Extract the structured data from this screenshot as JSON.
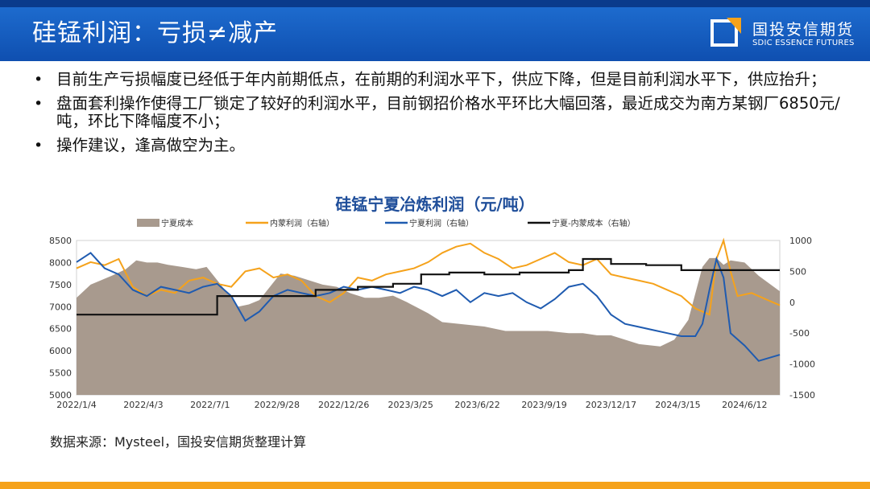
{
  "header": {
    "title": "硅锰利润：亏损≠减产",
    "logo_cn": "国投安信期货",
    "logo_en": "SDIC ESSENCE FUTURES"
  },
  "bullets": [
    "目前生产亏损幅度已经低于年内前期低点，在前期的利润水平下，供应下降，但是目前利润水平下，供应抬升；",
    "盘面套利操作使得工厂锁定了较好的利润水平，目前钢招价格水平环比大幅回落，最近成交为南方某钢厂6850元/吨，环比下降幅度不小；",
    "操作建议，逢高做空为主。"
  ],
  "source": "数据来源：Mysteel，国投安信期货整理计算",
  "colors": {
    "accent": "#1f6fd2",
    "orange": "#f5a21b"
  },
  "chart_data": {
    "type": "line",
    "title": "硅锰宁夏冶炼利润（元/吨）",
    "x_ticks": [
      "2022/1/4",
      "2022/4/3",
      "2022/7/1",
      "2022/9/28",
      "2022/12/26",
      "2023/3/25",
      "2023/6/22",
      "2023/9/19",
      "2023/12/17",
      "2024/3/15",
      "2024/6/12"
    ],
    "y_left": {
      "ticks": [
        "5000",
        "5500",
        "6000",
        "6500",
        "7000",
        "7500",
        "8000",
        "8500"
      ],
      "range": [
        5000,
        8500
      ]
    },
    "y_right": {
      "ticks": [
        "-1500",
        "-1000",
        "-500",
        "0",
        "500",
        "1000"
      ],
      "range": [
        -1500,
        1000
      ]
    },
    "legend": [
      "宁夏成本",
      "内蒙利润（右轴）",
      "宁夏利润（右轴）",
      "宁夏-内蒙成本（右轴）"
    ],
    "series": [
      {
        "name": "宁夏成本",
        "type": "area",
        "axis": "left",
        "color": "#a89a8e",
        "x": [
          0,
          0.02,
          0.035,
          0.05,
          0.07,
          0.085,
          0.1,
          0.115,
          0.13,
          0.15,
          0.17,
          0.185,
          0.2,
          0.215,
          0.23,
          0.245,
          0.26,
          0.275,
          0.29,
          0.31,
          0.33,
          0.35,
          0.37,
          0.39,
          0.41,
          0.43,
          0.45,
          0.47,
          0.5,
          0.52,
          0.55,
          0.58,
          0.61,
          0.64,
          0.67,
          0.7,
          0.72,
          0.74,
          0.76,
          0.78,
          0.8,
          0.83,
          0.85,
          0.87,
          0.88,
          0.89,
          0.9,
          0.91,
          0.92,
          0.93,
          0.95,
          0.97,
          1.0
        ],
        "values": [
          7200,
          7500,
          7600,
          7700,
          7850,
          8050,
          8000,
          8000,
          7950,
          7900,
          7850,
          7900,
          7600,
          7300,
          7000,
          7050,
          7150,
          7450,
          7750,
          7700,
          7600,
          7500,
          7450,
          7300,
          7200,
          7200,
          7250,
          7100,
          6850,
          6650,
          6600,
          6550,
          6450,
          6450,
          6450,
          6400,
          6400,
          6350,
          6350,
          6250,
          6150,
          6100,
          6250,
          6700,
          7300,
          7900,
          8100,
          8100,
          7950,
          8050,
          8000,
          7700,
          7350
        ]
      },
      {
        "name": "内蒙利润（右轴）",
        "type": "line",
        "axis": "right",
        "color": "#f5a21b",
        "x": [
          0,
          0.02,
          0.04,
          0.06,
          0.08,
          0.1,
          0.12,
          0.14,
          0.16,
          0.18,
          0.2,
          0.22,
          0.24,
          0.26,
          0.28,
          0.3,
          0.32,
          0.34,
          0.36,
          0.38,
          0.4,
          0.42,
          0.44,
          0.46,
          0.48,
          0.5,
          0.52,
          0.54,
          0.56,
          0.58,
          0.6,
          0.62,
          0.64,
          0.66,
          0.68,
          0.7,
          0.72,
          0.74,
          0.76,
          0.78,
          0.8,
          0.82,
          0.84,
          0.86,
          0.88,
          0.9,
          0.91,
          0.92,
          0.93,
          0.94,
          0.96,
          0.98,
          1.0
        ],
        "values": [
          550,
          650,
          600,
          700,
          250,
          100,
          200,
          150,
          350,
          400,
          300,
          250,
          500,
          550,
          400,
          450,
          350,
          100,
          0,
          150,
          400,
          350,
          450,
          500,
          550,
          650,
          800,
          900,
          950,
          800,
          700,
          550,
          600,
          700,
          800,
          650,
          600,
          700,
          450,
          400,
          350,
          300,
          200,
          100,
          -100,
          -200,
          700,
          1000,
          500,
          100,
          150,
          50,
          -50
        ]
      },
      {
        "name": "宁夏利润（右轴）",
        "type": "line",
        "axis": "right",
        "color": "#1f5bb0",
        "x": [
          0,
          0.02,
          0.04,
          0.06,
          0.08,
          0.1,
          0.12,
          0.14,
          0.16,
          0.18,
          0.2,
          0.22,
          0.24,
          0.26,
          0.28,
          0.3,
          0.32,
          0.34,
          0.36,
          0.38,
          0.4,
          0.42,
          0.44,
          0.46,
          0.48,
          0.5,
          0.52,
          0.54,
          0.56,
          0.58,
          0.6,
          0.62,
          0.64,
          0.66,
          0.68,
          0.7,
          0.72,
          0.74,
          0.76,
          0.78,
          0.8,
          0.82,
          0.84,
          0.86,
          0.88,
          0.89,
          0.9,
          0.91,
          0.92,
          0.93,
          0.95,
          0.97,
          1.0
        ],
        "values": [
          650,
          800,
          550,
          450,
          200,
          100,
          250,
          200,
          150,
          250,
          300,
          100,
          -300,
          -150,
          100,
          200,
          150,
          100,
          150,
          250,
          200,
          250,
          200,
          150,
          250,
          200,
          100,
          200,
          0,
          150,
          100,
          150,
          0,
          -100,
          50,
          250,
          300,
          100,
          -200,
          -350,
          -400,
          -450,
          -500,
          -550,
          -550,
          -350,
          200,
          700,
          400,
          -500,
          -700,
          -950,
          -850
        ]
      },
      {
        "name": "宁夏-内蒙成本（右轴）",
        "type": "step",
        "axis": "right",
        "color": "#111111",
        "x": [
          0,
          0.09,
          0.14,
          0.2,
          0.28,
          0.34,
          0.4,
          0.45,
          0.49,
          0.53,
          0.58,
          0.63,
          0.7,
          0.72,
          0.76,
          0.81,
          0.86,
          0.9,
          1.0
        ],
        "values": [
          -200,
          -200,
          -200,
          100,
          100,
          200,
          250,
          300,
          450,
          480,
          450,
          480,
          520,
          700,
          620,
          600,
          520,
          520,
          520
        ]
      }
    ]
  }
}
